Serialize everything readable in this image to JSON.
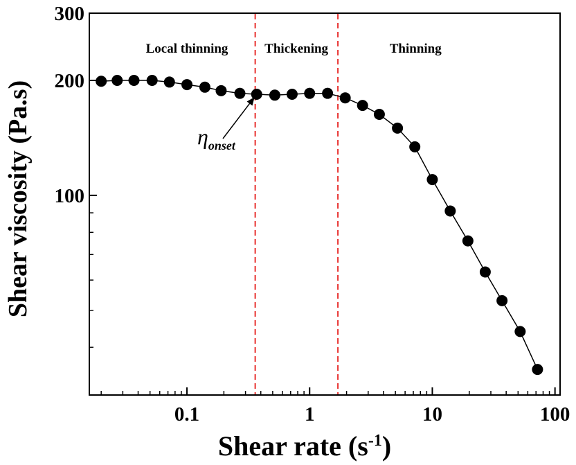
{
  "chart_data": {
    "type": "line",
    "xlabel": "Shear rate (s",
    "xlabel_sup": "-1",
    "xlabel_end": ")",
    "ylabel": "Shear viscosity (Pa.s)",
    "x_scale": "log",
    "y_scale": "log",
    "xlim": [
      0.016,
      110
    ],
    "ylim": [
      30,
      300
    ],
    "x_ticks": [
      {
        "value": 0.1,
        "label": "0.1"
      },
      {
        "value": 1,
        "label": "1"
      },
      {
        "value": 10,
        "label": "10"
      },
      {
        "value": 100,
        "label": "100"
      }
    ],
    "y_ticks": [
      {
        "value": 100,
        "label": "100"
      },
      {
        "value": 200,
        "label": "200"
      },
      {
        "value": 300,
        "label": "300"
      }
    ],
    "grid": false,
    "marker": "circle",
    "color": "#000000",
    "boundary_color": "#e8312f",
    "boundaries": [
      0.36,
      1.7
    ],
    "regions": [
      {
        "label": "Local thinning",
        "x": 0.1
      },
      {
        "label": "Thickening",
        "x": 0.78
      },
      {
        "label": "Thinning",
        "x": 7.3
      }
    ],
    "annotation": {
      "symbol": "η",
      "subscript": "onset",
      "x": 0.38,
      "y": 184
    },
    "series": [
      {
        "x": [
          0.02,
          0.027,
          0.037,
          0.052,
          0.072,
          0.1,
          0.14,
          0.19,
          0.27,
          0.37,
          0.52,
          0.72,
          1.0,
          1.4,
          1.95,
          2.7,
          3.7,
          5.2,
          7.2,
          10,
          14,
          19.5,
          27,
          37,
          52,
          72
        ],
        "y": [
          199,
          200,
          200,
          200,
          198,
          195,
          192,
          188,
          185,
          184,
          183,
          184,
          185,
          185,
          180,
          172,
          163,
          150,
          134,
          110,
          91,
          76,
          63,
          53,
          44,
          35
        ]
      }
    ]
  }
}
